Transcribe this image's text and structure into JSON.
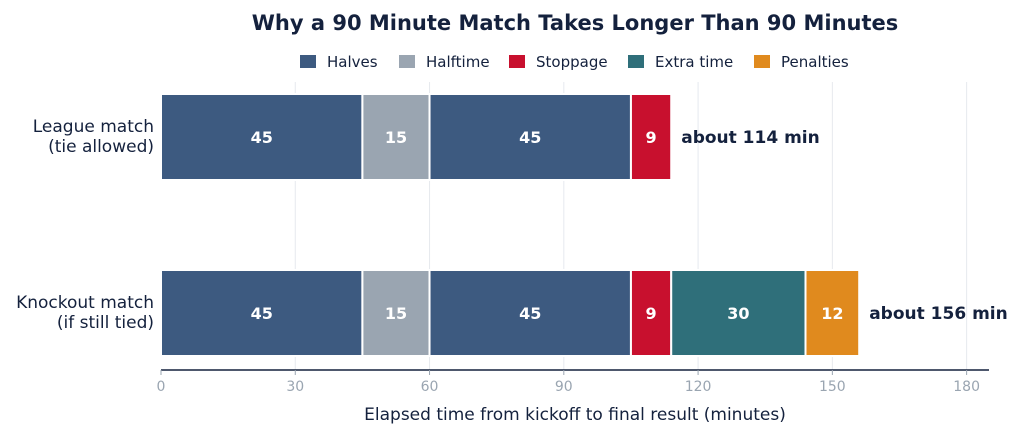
{
  "chart_data": {
    "type": "bar",
    "orientation": "horizontal",
    "stacked": true,
    "title": "Why a 90 Minute Match Takes Longer Than 90 Minutes",
    "xlabel": "Elapsed time from kickoff to final result (minutes)",
    "ylabel": "",
    "xlim": [
      0,
      185
    ],
    "xticks": [
      0,
      30,
      60,
      90,
      120,
      150,
      180
    ],
    "grid": true,
    "legend_position": "top",
    "legend": [
      {
        "name": "Halves",
        "color": "#3d5a80"
      },
      {
        "name": "Halftime",
        "color": "#9aa5b1"
      },
      {
        "name": "Stoppage",
        "color": "#c8102e"
      },
      {
        "name": "Extra time",
        "color": "#2f6f7a"
      },
      {
        "name": "Penalties",
        "color": "#e08a1e"
      }
    ],
    "categories": [
      {
        "label_lines": [
          "League match",
          "(tie allowed)"
        ],
        "total_label": "about 114 min",
        "segments": [
          {
            "series": "Halves",
            "value": 45,
            "label": "45"
          },
          {
            "series": "Halftime",
            "value": 15,
            "label": "15"
          },
          {
            "series": "Halves",
            "value": 45,
            "label": "45"
          },
          {
            "series": "Stoppage",
            "value": 9,
            "label": "9"
          }
        ]
      },
      {
        "label_lines": [
          "Knockout match",
          "(if still tied)"
        ],
        "total_label": "about 156 min",
        "segments": [
          {
            "series": "Halves",
            "value": 45,
            "label": "45"
          },
          {
            "series": "Halftime",
            "value": 15,
            "label": "15"
          },
          {
            "series": "Halves",
            "value": 45,
            "label": "45"
          },
          {
            "series": "Stoppage",
            "value": 9,
            "label": "9"
          },
          {
            "series": "Extra time",
            "value": 30,
            "label": "30"
          },
          {
            "series": "Penalties",
            "value": 12,
            "label": "12"
          }
        ]
      }
    ]
  }
}
